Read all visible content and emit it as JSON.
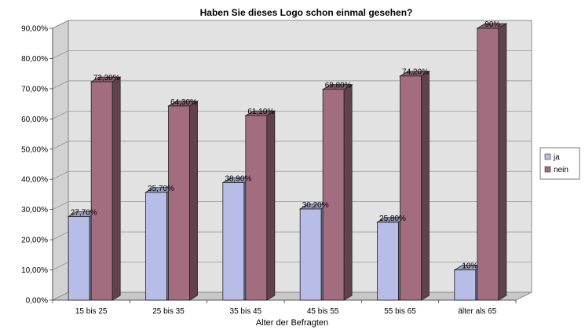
{
  "chart_data": {
    "type": "bar",
    "title": "Haben Sie dieses Logo schon einmal gesehen?",
    "xlabel": "Alter der Befragten",
    "ylabel": "",
    "ylim": [
      0,
      90
    ],
    "y_tick_labels": [
      "0,00%",
      "10,00%",
      "20,00%",
      "30,00%",
      "40,00%",
      "50,00%",
      "60,00%",
      "70,00%",
      "80,00%",
      "90,00%"
    ],
    "categories": [
      "15 bis 25",
      "25 bis 35",
      "35 bis 45",
      "45 bis 55",
      "55 bis 65",
      "älter als 65"
    ],
    "series": [
      {
        "name": "ja",
        "values": [
          27.7,
          35.7,
          38.9,
          30.2,
          25.8,
          10
        ],
        "labels": [
          "27,70%",
          "35,70%",
          "38,90%",
          "30,20%",
          "25,80%",
          "10%"
        ],
        "color": "#b8bde8"
      },
      {
        "name": "nein",
        "values": [
          72.3,
          64.3,
          61.1,
          69.8,
          74.2,
          90
        ],
        "labels": [
          "72,30%",
          "64,30%",
          "61,10%",
          "69,80%",
          "74,20%",
          "90%"
        ],
        "color": "#a26e7f"
      }
    ],
    "legend_position": "right",
    "grid": true,
    "style": "3d-columns"
  }
}
